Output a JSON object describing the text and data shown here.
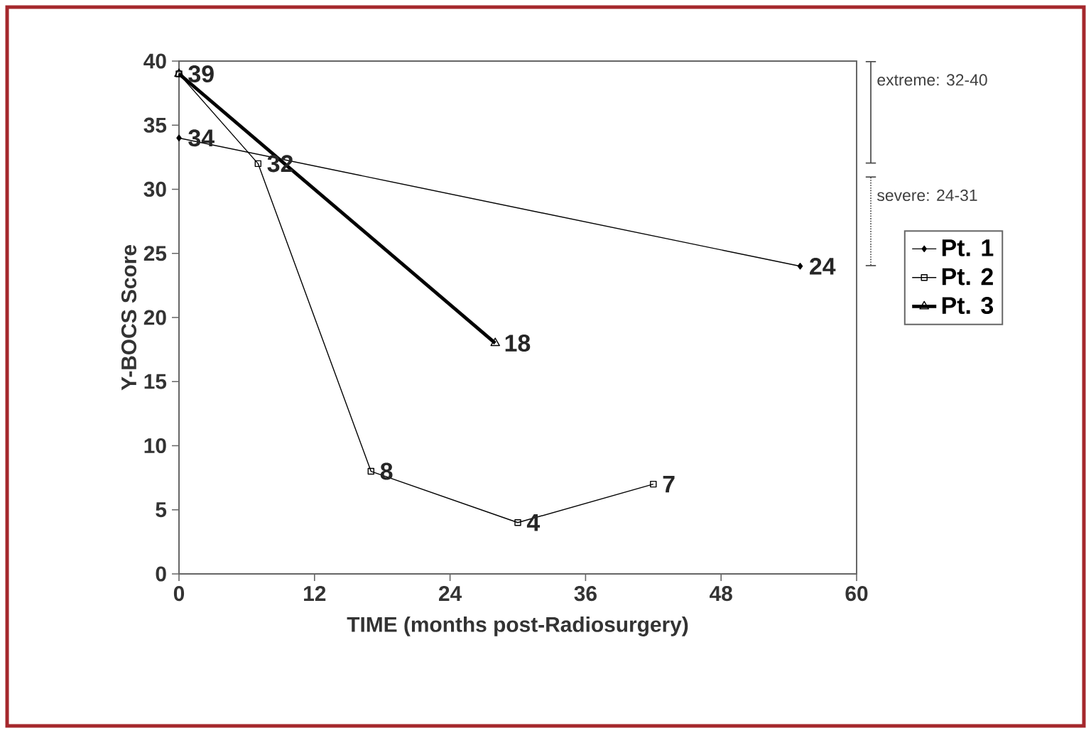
{
  "chart_data": {
    "type": "line",
    "xlabel": "TIME (months post-Radiosurgery)",
    "ylabel": "Y-BOCS Score",
    "xlim": [
      0,
      60
    ],
    "xticks": [
      0,
      12,
      24,
      36,
      48,
      60
    ],
    "ylim": [
      0,
      40
    ],
    "yticks": [
      0,
      5,
      10,
      15,
      20,
      25,
      30,
      35,
      40
    ],
    "series": [
      {
        "name": "Pt. 1",
        "color": "#000000",
        "marker": "diamond",
        "x": [
          0,
          55
        ],
        "values": [
          34,
          24
        ],
        "value_labels": [
          "34",
          "24"
        ]
      },
      {
        "name": "Pt. 2",
        "color": "#000000",
        "marker": "square",
        "x": [
          0,
          7,
          17,
          30,
          42
        ],
        "values": [
          39,
          32,
          8,
          4,
          7
        ],
        "value_labels": [
          null,
          "32",
          "8",
          "4",
          "7"
        ]
      },
      {
        "name": "Pt. 3",
        "color": "#000000",
        "marker": "triangle",
        "x": [
          0,
          28
        ],
        "values": [
          39,
          18
        ],
        "value_labels": [
          "39",
          "18"
        ]
      }
    ],
    "annotations": [
      "extreme: 32-40",
      "severe: 24-31"
    ],
    "legend": "right",
    "grid": false
  }
}
